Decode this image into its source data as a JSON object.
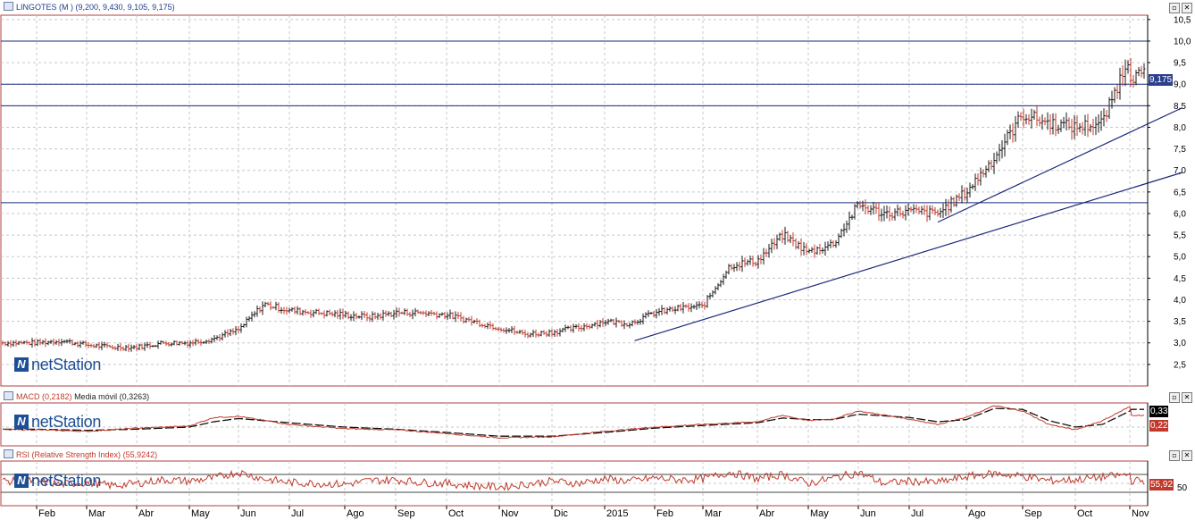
{
  "price_pane": {
    "symbol": "LINGOTES",
    "params": "(M ) (9,200, 9,430, 9,105, 9,175)",
    "last_badge": "9,175"
  },
  "macd_pane": {
    "name": "MACD",
    "value": "(0,2182)",
    "signal_label": "Media móvil (0,3263)",
    "badge_black": "0,33",
    "badge_red": "0,22"
  },
  "rsi_pane": {
    "name": "RSI (Relative Strength Index)",
    "value": "(55,9242)",
    "badge": "55,92",
    "level_label": "50"
  },
  "watermark": {
    "logo": "N",
    "text": "netStation"
  },
  "window_buttons": {
    "minimize": "▫",
    "close": "✕"
  },
  "colors": {
    "accent": "#1c4f95",
    "bar_dark": "#1a1a1a",
    "bar_red": "#c0392b",
    "macd_line": "#c0392b",
    "signal_line": "#111111",
    "rsi_line": "#c0392b",
    "frame_red": "#b04040",
    "hline": "#1a2a7a",
    "badge_price_bg": "#2c3f8f",
    "badge_red_bg": "#c0392b",
    "badge_black_bg": "#000000"
  },
  "chart_data": [
    {
      "type": "bar",
      "name": "LINGOTES (M ) OHLC",
      "x_labels": [
        "Feb",
        "Mar",
        "Abr",
        "May",
        "Jun",
        "Jul",
        "Ago",
        "Sep",
        "Oct",
        "Nov",
        "Dic",
        "2015",
        "Feb",
        "Mar",
        "Abr",
        "May",
        "Jun",
        "Jul",
        "Ago",
        "Sep",
        "Oct",
        "Nov"
      ],
      "ylim": [
        2.0,
        10.6
      ],
      "y_ticks": [
        "2,5",
        "3,0",
        "3,5",
        "4,0",
        "4,5",
        "5,0",
        "5,5",
        "6,0",
        "6,5",
        "7,0",
        "7,5",
        "8,0",
        "8,5",
        "9,0",
        "9,5",
        "10,0",
        "10,5"
      ],
      "grid": true,
      "last": {
        "open": 9.2,
        "high": 9.43,
        "low": 9.105,
        "close": 9.175
      },
      "series": [
        {
          "name": "close",
          "t": [
            0,
            0.5,
            1,
            1.5,
            2,
            2.5,
            3,
            3.5,
            4,
            4.5,
            5,
            5.5,
            6,
            6.5,
            7,
            7.5,
            8,
            8.5,
            9,
            9.5,
            10,
            10.5,
            11,
            11.5,
            12,
            12.5,
            13,
            13.5,
            14,
            14.5,
            15,
            15.5,
            16,
            16.5,
            17,
            17.5,
            18,
            18.5,
            19,
            19.5,
            20,
            20.5,
            21,
            21.3
          ],
          "values": [
            3.0,
            3.05,
            2.95,
            2.9,
            2.9,
            3.0,
            3.0,
            3.1,
            3.3,
            3.9,
            3.75,
            3.7,
            3.65,
            3.6,
            3.7,
            3.7,
            3.65,
            3.5,
            3.35,
            3.2,
            3.25,
            3.35,
            3.5,
            3.45,
            3.7,
            3.8,
            3.85,
            4.8,
            4.9,
            5.5,
            5.1,
            5.3,
            6.2,
            6.0,
            6.05,
            6.0,
            6.5,
            7.3,
            8.3,
            8.1,
            8.0,
            8.1,
            9.7,
            9.2
          ]
        }
      ],
      "hlines": [
        10.0,
        9.0,
        8.5,
        6.25
      ],
      "trendlines": [
        {
          "from": [
            11.6,
            3.05
          ],
          "to": [
            22.0,
            6.95
          ]
        },
        {
          "from": [
            17.5,
            5.8
          ],
          "to": [
            22.0,
            8.45
          ]
        }
      ]
    },
    {
      "type": "line",
      "name": "MACD",
      "ylim": [
        -0.35,
        0.45
      ],
      "level": 0.0,
      "series": [
        {
          "name": "MACD",
          "t": [
            0,
            1,
            2,
            3,
            3.5,
            4,
            5,
            6,
            7,
            8,
            9,
            10,
            11,
            12,
            13,
            14,
            14.5,
            15,
            15.5,
            16,
            17,
            17.5,
            18,
            18.5,
            19,
            19.5,
            20,
            20.5,
            21,
            21.3
          ],
          "values": [
            -0.05,
            -0.08,
            -0.02,
            0.02,
            0.18,
            0.2,
            0.05,
            -0.03,
            -0.05,
            -0.12,
            -0.2,
            -0.18,
            -0.08,
            0.0,
            0.05,
            0.1,
            0.22,
            0.12,
            0.15,
            0.3,
            0.15,
            0.05,
            0.18,
            0.4,
            0.3,
            0.05,
            -0.05,
            0.12,
            0.38,
            0.22
          ]
        },
        {
          "name": "Media móvil",
          "t": [
            0,
            1,
            2,
            3,
            3.5,
            4,
            5,
            6,
            7,
            8,
            9,
            10,
            11,
            12,
            13,
            14,
            14.5,
            15,
            15.5,
            16,
            17,
            17.5,
            18,
            18.5,
            19,
            19.5,
            20,
            20.5,
            21,
            21.3
          ],
          "values": [
            -0.04,
            -0.06,
            -0.04,
            0.0,
            0.1,
            0.16,
            0.08,
            0.0,
            -0.04,
            -0.1,
            -0.17,
            -0.17,
            -0.1,
            -0.02,
            0.03,
            0.08,
            0.17,
            0.14,
            0.14,
            0.24,
            0.18,
            0.1,
            0.14,
            0.35,
            0.33,
            0.12,
            0.0,
            0.05,
            0.3,
            0.33
          ]
        }
      ]
    },
    {
      "type": "line",
      "name": "RSI (Relative Strength Index)",
      "ylim": [
        0,
        100
      ],
      "levels": [
        70,
        50,
        30
      ],
      "series": [
        {
          "name": "RSI",
          "t": [
            0,
            0.5,
            1,
            1.5,
            2,
            2.5,
            3,
            3.5,
            4,
            4.5,
            5,
            5.5,
            6,
            6.5,
            7,
            7.5,
            8,
            8.5,
            9,
            9.5,
            10,
            10.5,
            11,
            11.5,
            12,
            12.5,
            13,
            13.5,
            14,
            14.5,
            15,
            15.5,
            16,
            16.5,
            17,
            17.5,
            18,
            18.5,
            19,
            19.5,
            20,
            20.5,
            21,
            21.3
          ],
          "values": [
            55,
            48,
            52,
            45,
            50,
            58,
            55,
            62,
            75,
            60,
            52,
            50,
            48,
            56,
            58,
            52,
            50,
            45,
            42,
            48,
            55,
            50,
            60,
            55,
            62,
            58,
            60,
            75,
            60,
            70,
            50,
            62,
            74,
            50,
            55,
            52,
            65,
            72,
            66,
            56,
            58,
            64,
            70,
            56
          ]
        }
      ]
    }
  ]
}
